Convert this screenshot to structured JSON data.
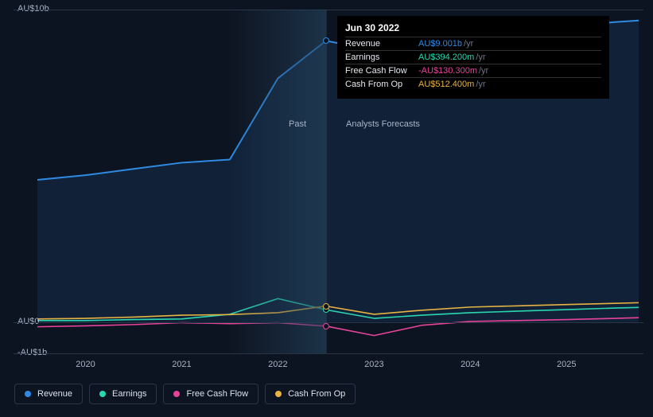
{
  "chart": {
    "type": "line",
    "background_color": "#0d1421",
    "grid_color": "#2a3548",
    "text_color": "#a8b3c6",
    "label_fontsize": 11,
    "ylim_min": -1,
    "ylim_max": 10,
    "y_ticks": [
      {
        "value": 10,
        "label": "AU$10b"
      },
      {
        "value": 0,
        "label": "AU$0"
      },
      {
        "value": -1,
        "label": "-AU$1b"
      }
    ],
    "x_ticks": [
      "2020",
      "2021",
      "2022",
      "2023",
      "2024",
      "2025"
    ],
    "x_domain_start": 2019.5,
    "x_domain_end": 2025.75,
    "past_label": "Past",
    "forecast_label": "Analysts Forecasts",
    "divider_x": 2022.5,
    "past_shade_start_x": 2021.5,
    "past_shade_gradient_from": "rgba(36,67,93,0.0)",
    "past_shade_gradient_to": "rgba(36,67,93,0.65)"
  },
  "series": [
    {
      "name": "Revenue",
      "color": "#2f8ae2",
      "stroke_width": 2,
      "area_fill": "rgba(47,138,226,0.12)",
      "points": [
        [
          2019.5,
          4.55
        ],
        [
          2020,
          4.7
        ],
        [
          2020.5,
          4.9
        ],
        [
          2021,
          5.1
        ],
        [
          2021.5,
          5.2
        ],
        [
          2022,
          7.8
        ],
        [
          2022.5,
          9.0
        ],
        [
          2023,
          8.7
        ],
        [
          2023.5,
          8.85
        ],
        [
          2024,
          9.1
        ],
        [
          2024.5,
          9.25
        ],
        [
          2025,
          9.45
        ],
        [
          2025.5,
          9.6
        ],
        [
          2025.75,
          9.65
        ]
      ]
    },
    {
      "name": "Earnings",
      "color": "#2ad6b1",
      "stroke_width": 1.6,
      "points": [
        [
          2019.5,
          0.05
        ],
        [
          2020,
          0.05
        ],
        [
          2020.5,
          0.08
        ],
        [
          2021,
          0.1
        ],
        [
          2021.5,
          0.25
        ],
        [
          2022,
          0.75
        ],
        [
          2022.5,
          0.394
        ],
        [
          2023,
          0.12
        ],
        [
          2023.5,
          0.22
        ],
        [
          2024,
          0.3
        ],
        [
          2024.5,
          0.35
        ],
        [
          2025,
          0.4
        ],
        [
          2025.5,
          0.45
        ],
        [
          2025.75,
          0.47
        ]
      ]
    },
    {
      "name": "Free Cash Flow",
      "color": "#e6439a",
      "stroke_width": 1.6,
      "points": [
        [
          2019.5,
          -0.15
        ],
        [
          2020,
          -0.12
        ],
        [
          2020.5,
          -0.08
        ],
        [
          2021,
          -0.02
        ],
        [
          2021.5,
          -0.05
        ],
        [
          2022,
          -0.02
        ],
        [
          2022.5,
          -0.1303
        ],
        [
          2023,
          -0.43
        ],
        [
          2023.5,
          -0.1
        ],
        [
          2024,
          0.02
        ],
        [
          2024.5,
          0.05
        ],
        [
          2025,
          0.08
        ],
        [
          2025.5,
          0.12
        ],
        [
          2025.75,
          0.14
        ]
      ]
    },
    {
      "name": "Cash From Op",
      "color": "#e6b343",
      "stroke_width": 1.6,
      "points": [
        [
          2019.5,
          0.1
        ],
        [
          2020,
          0.12
        ],
        [
          2020.5,
          0.16
        ],
        [
          2021,
          0.22
        ],
        [
          2021.5,
          0.24
        ],
        [
          2022,
          0.3
        ],
        [
          2022.5,
          0.5124
        ],
        [
          2023,
          0.25
        ],
        [
          2023.5,
          0.38
        ],
        [
          2024,
          0.48
        ],
        [
          2024.5,
          0.52
        ],
        [
          2025,
          0.56
        ],
        [
          2025.5,
          0.6
        ],
        [
          2025.75,
          0.62
        ]
      ]
    }
  ],
  "tooltip": {
    "title": "Jun 30 2022",
    "rows": [
      {
        "metric": "Revenue",
        "value": "AU$9.001b",
        "unit": "/yr",
        "color": "#2f8ae2"
      },
      {
        "metric": "Earnings",
        "value": "AU$394.200m",
        "unit": "/yr",
        "color": "#2ad6b1"
      },
      {
        "metric": "Free Cash Flow",
        "value": "-AU$130.300m",
        "unit": "/yr",
        "color": "#e6439a"
      },
      {
        "metric": "Cash From Op",
        "value": "AU$512.400m",
        "unit": "/yr",
        "color": "#e6b343"
      }
    ]
  },
  "markers_at_x": 2022.5,
  "legend": {
    "items": [
      {
        "label": "Revenue",
        "color": "#2f8ae2"
      },
      {
        "label": "Earnings",
        "color": "#2ad6b1"
      },
      {
        "label": "Free Cash Flow",
        "color": "#e6439a"
      },
      {
        "label": "Cash From Op",
        "color": "#e6b343"
      }
    ]
  }
}
